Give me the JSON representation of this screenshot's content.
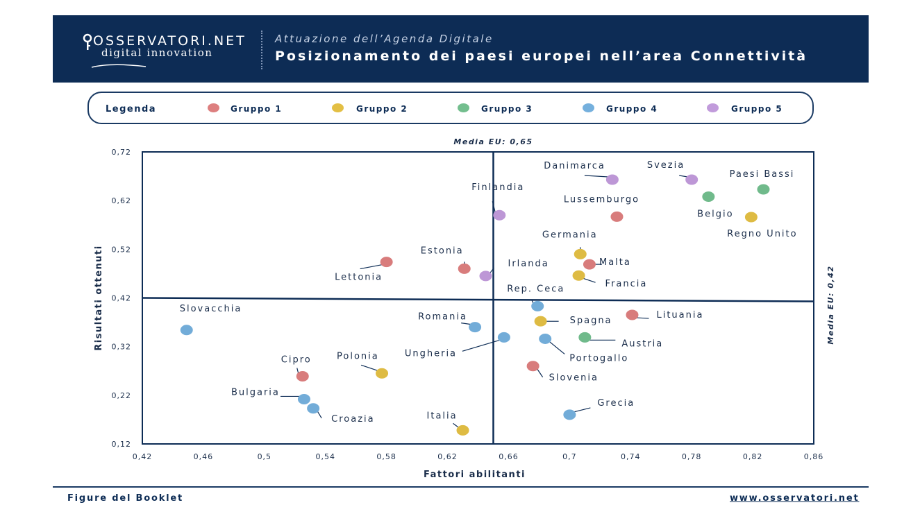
{
  "header": {
    "logo_word": "OSSERVATORI.NET",
    "logo_sub": "digital innovation",
    "subtitle": "Attuazione dell’Agenda Digitale",
    "title": "Posizionamento dei paesi europei nell’area Connettività"
  },
  "legend": {
    "title": "Legenda",
    "items": [
      {
        "label": "Gruppo 1",
        "color": "#f08a8a"
      },
      {
        "label": "Gruppo 2",
        "color": "#f7d04a"
      },
      {
        "label": "Gruppo 3",
        "color": "#7dcf9a"
      },
      {
        "label": "Gruppo 4",
        "color": "#7fbff0"
      },
      {
        "label": "Gruppo 5",
        "color": "#d2a8ee"
      }
    ]
  },
  "footer": {
    "left": "Figure del Booklet",
    "right": "www.osservatori.net"
  },
  "chart_data": {
    "type": "scatter",
    "xlabel": "Fattori abilitanti",
    "ylabel": "Risultati ottenuti",
    "xlim": [
      0.42,
      0.86
    ],
    "ylim": [
      0.12,
      0.72
    ],
    "xticks": [
      "0,42",
      "0,46",
      "0,5",
      "0,54",
      "0,58",
      "0,62",
      "0,66",
      "0,7",
      "0,74",
      "0,78",
      "0,82",
      "0,86"
    ],
    "yticks": [
      "0,72",
      "0,62",
      "0,52",
      "0,42",
      "0,32",
      "0,22",
      "0,12"
    ],
    "reference_lines": {
      "vertical": {
        "value": 0.65,
        "label": "Media EU: 0,65"
      },
      "horizontal": {
        "value": 0.42,
        "label": "Media EU: 0,42"
      }
    },
    "points": [
      {
        "name": "Danimarca",
        "x": 0.728,
        "y": 0.663,
        "group": 5
      },
      {
        "name": "Svezia",
        "x": 0.78,
        "y": 0.663,
        "group": 5
      },
      {
        "name": "Paesi Bassi",
        "x": 0.827,
        "y": 0.643,
        "group": 3
      },
      {
        "name": "Belgio",
        "x": 0.791,
        "y": 0.628,
        "group": 3
      },
      {
        "name": "Finlandia",
        "x": 0.654,
        "y": 0.59,
        "group": 5
      },
      {
        "name": "Lussemburgo",
        "x": 0.731,
        "y": 0.587,
        "group": 1
      },
      {
        "name": "Regno Unito",
        "x": 0.819,
        "y": 0.586,
        "group": 2
      },
      {
        "name": "Germania",
        "x": 0.707,
        "y": 0.51,
        "group": 2
      },
      {
        "name": "Malta",
        "x": 0.713,
        "y": 0.489,
        "group": 1
      },
      {
        "name": "Lettonia",
        "x": 0.58,
        "y": 0.494,
        "group": 1
      },
      {
        "name": "Estonia",
        "x": 0.631,
        "y": 0.48,
        "group": 1
      },
      {
        "name": "Irlanda",
        "x": 0.645,
        "y": 0.465,
        "group": 5
      },
      {
        "name": "Francia",
        "x": 0.706,
        "y": 0.466,
        "group": 2
      },
      {
        "name": "Rep. Ceca",
        "x": 0.679,
        "y": 0.403,
        "group": 4
      },
      {
        "name": "Lituania",
        "x": 0.741,
        "y": 0.385,
        "group": 1
      },
      {
        "name": "Spagna",
        "x": 0.681,
        "y": 0.372,
        "group": 2
      },
      {
        "name": "Romania",
        "x": 0.638,
        "y": 0.36,
        "group": 4
      },
      {
        "name": "Slovacchia",
        "x": 0.449,
        "y": 0.354,
        "group": 4
      },
      {
        "name": "Austria",
        "x": 0.71,
        "y": 0.339,
        "group": 3
      },
      {
        "name": "Ungheria",
        "x": 0.657,
        "y": 0.339,
        "group": 4
      },
      {
        "name": "Portogallo",
        "x": 0.684,
        "y": 0.336,
        "group": 4
      },
      {
        "name": "Slovenia",
        "x": 0.676,
        "y": 0.28,
        "group": 1
      },
      {
        "name": "Polonia",
        "x": 0.577,
        "y": 0.265,
        "group": 2
      },
      {
        "name": "Cipro",
        "x": 0.525,
        "y": 0.259,
        "group": 1
      },
      {
        "name": "Bulgaria",
        "x": 0.526,
        "y": 0.212,
        "group": 4
      },
      {
        "name": "Croazia",
        "x": 0.532,
        "y": 0.193,
        "group": 4
      },
      {
        "name": "Grecia",
        "x": 0.7,
        "y": 0.18,
        "group": 4
      },
      {
        "name": "Italia",
        "x": 0.63,
        "y": 0.148,
        "group": 2
      }
    ]
  }
}
